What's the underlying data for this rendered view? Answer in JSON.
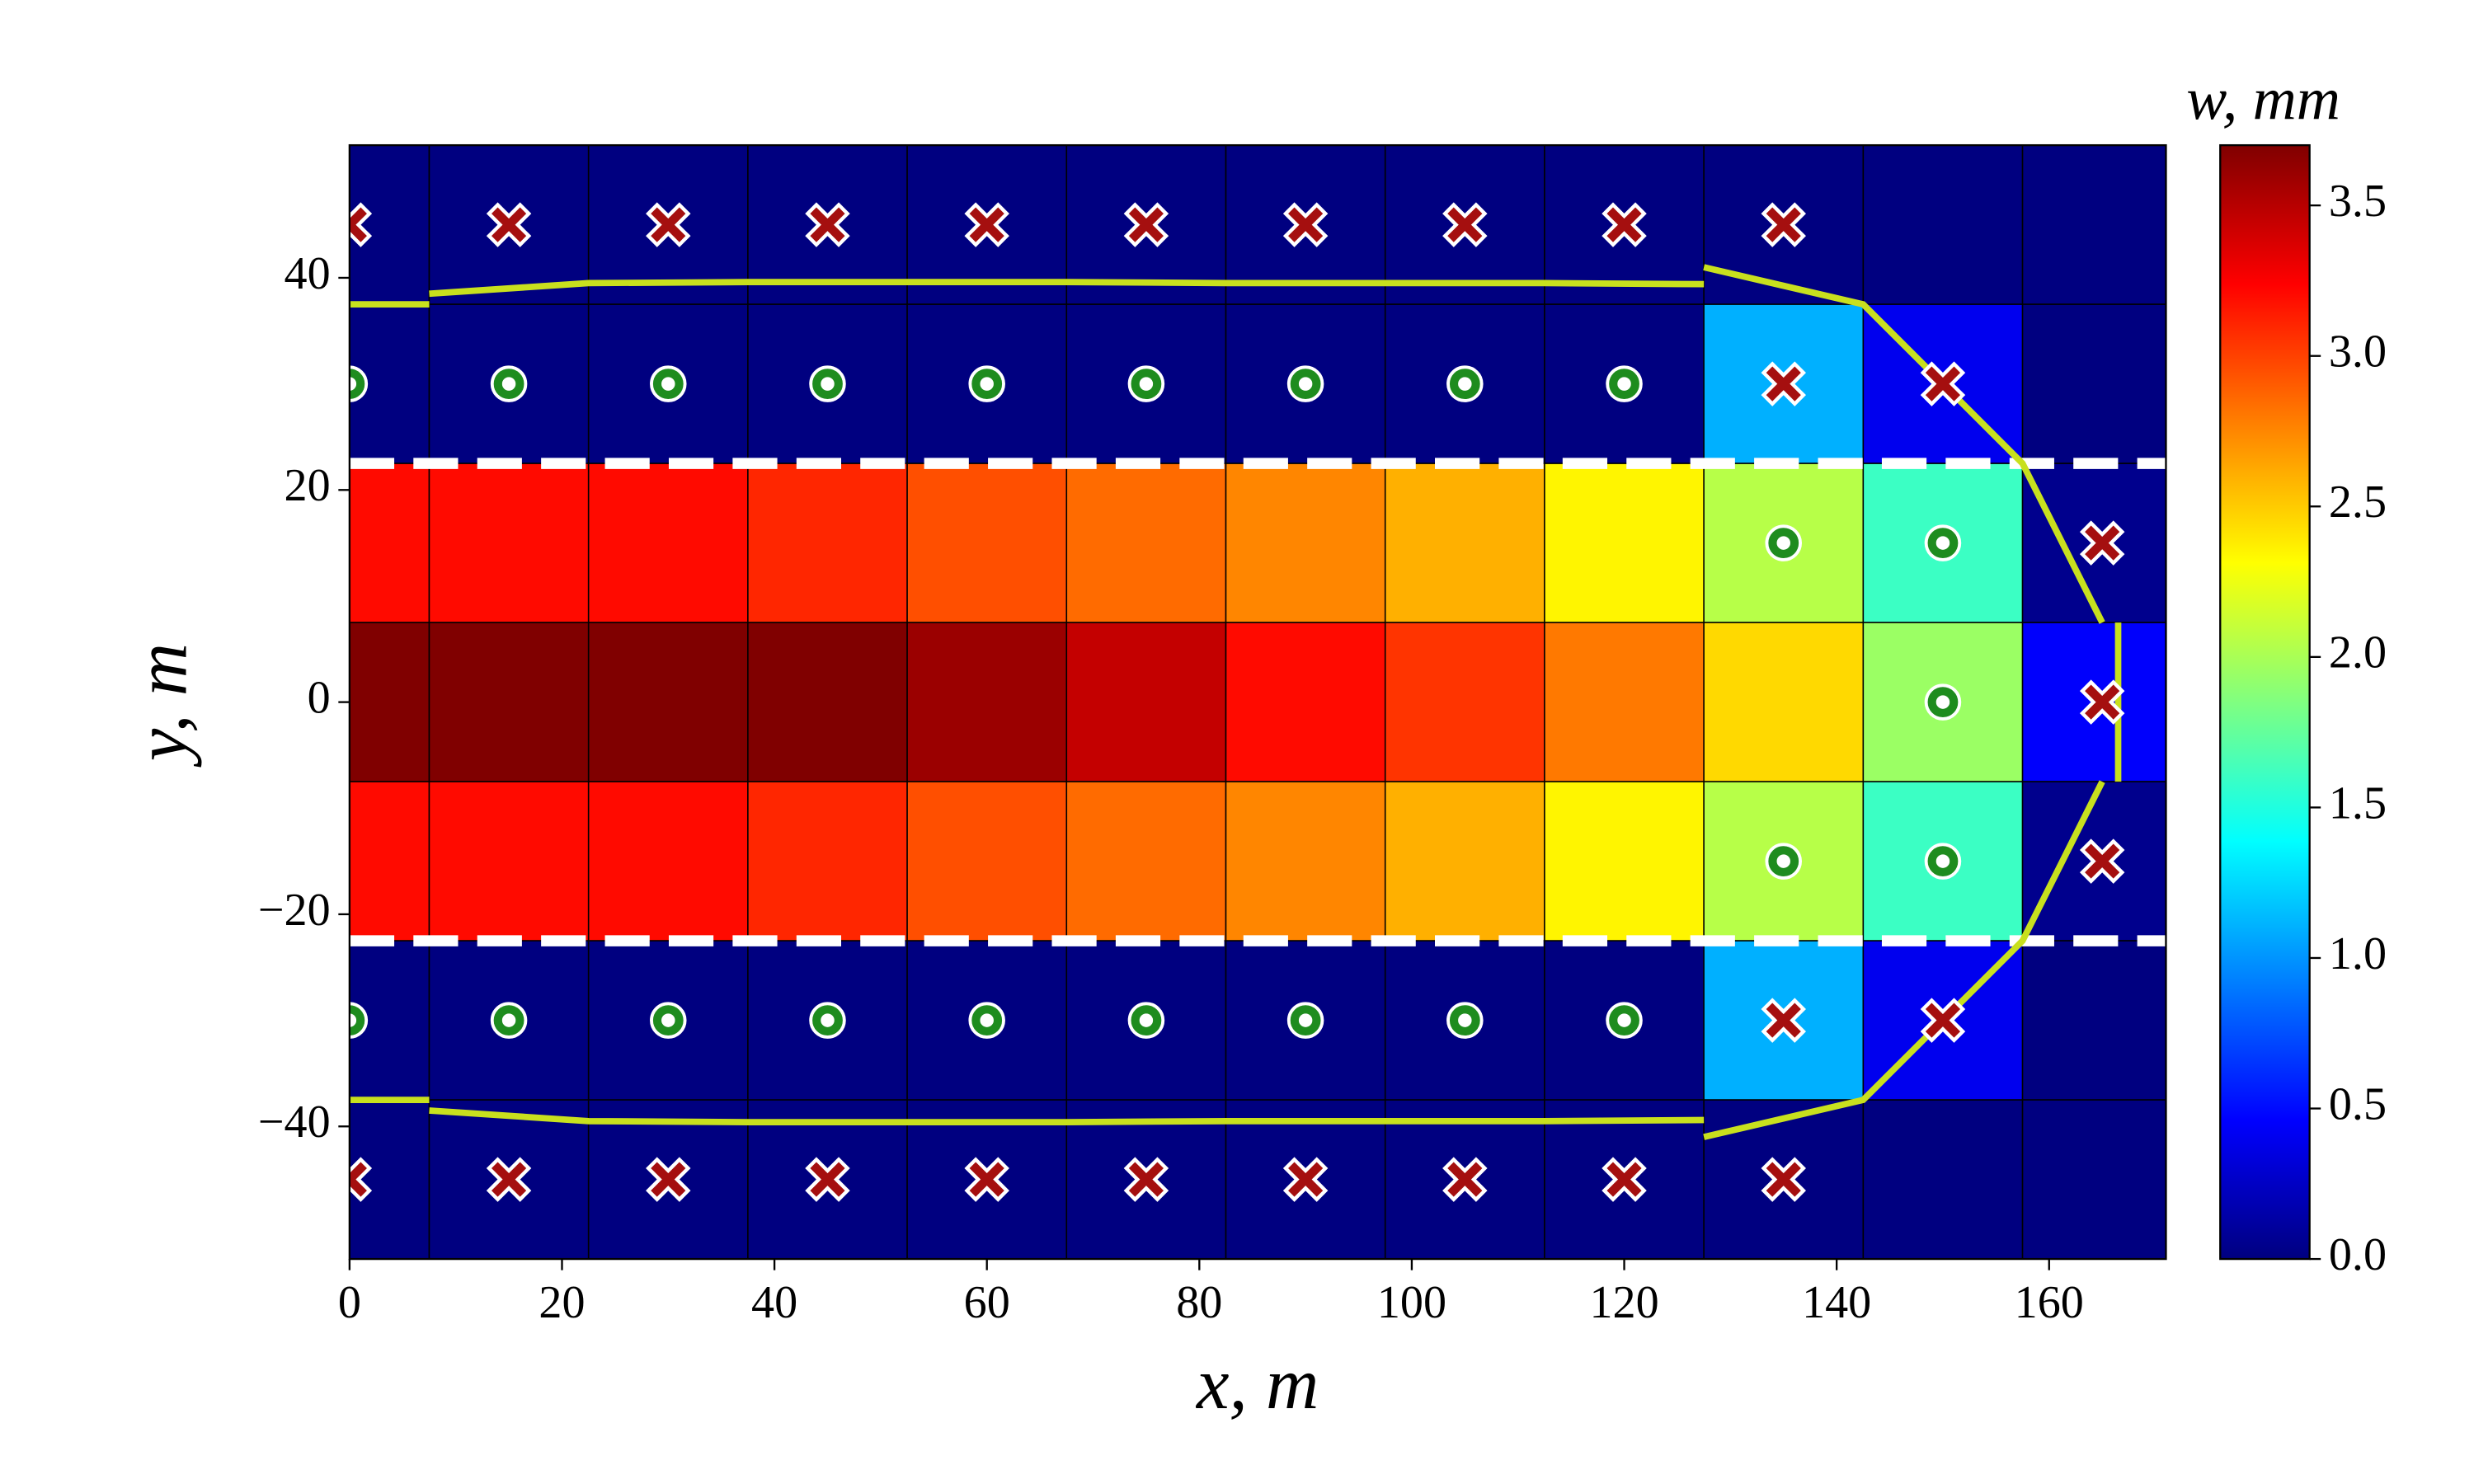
{
  "chart_data": {
    "type": "heatmap",
    "xlabel": "x, m",
    "ylabel": "y, m",
    "colorbar_label": "w, mm",
    "colormap": "jet",
    "x": [
      0,
      15,
      30,
      45,
      60,
      75,
      90,
      105,
      120,
      135,
      150,
      165
    ],
    "y": [
      45,
      30,
      15,
      0,
      -15,
      -30,
      -45
    ],
    "values": [
      [
        0,
        0,
        0,
        0,
        0,
        0,
        0,
        0,
        0,
        0,
        0,
        0
      ],
      [
        0,
        0,
        0,
        0,
        0,
        0,
        0,
        0,
        0,
        1.1,
        0.4,
        0
      ],
      [
        3.2,
        3.2,
        3.2,
        3.1,
        2.95,
        2.85,
        2.75,
        2.6,
        2.35,
        2.05,
        1.6,
        0.05
      ],
      [
        3.7,
        3.7,
        3.7,
        3.7,
        3.6,
        3.45,
        3.2,
        3.05,
        2.8,
        2.45,
        1.95,
        0.45
      ],
      [
        3.2,
        3.2,
        3.2,
        3.1,
        2.95,
        2.85,
        2.75,
        2.6,
        2.35,
        2.05,
        1.6,
        0.05
      ],
      [
        0,
        0,
        0,
        0,
        0,
        0,
        0,
        0,
        0,
        1.1,
        0.4,
        0
      ],
      [
        0,
        0,
        0,
        0,
        0,
        0,
        0,
        0,
        0,
        0,
        0,
        0
      ]
    ],
    "clim": [
      0,
      3.7
    ],
    "cbar_ticks": [
      {
        "value": 0,
        "label": "0.0"
      },
      {
        "value": 0.5,
        "label": "0.5"
      },
      {
        "value": 1,
        "label": "1.0"
      },
      {
        "value": 1.5,
        "label": "1.5"
      },
      {
        "value": 2,
        "label": "2.0"
      },
      {
        "value": 2.5,
        "label": "2.5"
      },
      {
        "value": 3,
        "label": "3.0"
      },
      {
        "value": 3.5,
        "label": "3.5"
      }
    ],
    "xlim": [
      0,
      171
    ],
    "ylim": [
      -52.5,
      52.5
    ],
    "xticks": [
      0,
      20,
      40,
      60,
      80,
      100,
      120,
      140,
      160
    ],
    "yticks": [
      {
        "value": -40,
        "label": "−40"
      },
      {
        "value": -20,
        "label": "−20"
      },
      0,
      20,
      40
    ],
    "hlines": {
      "values": [
        22.5,
        -22.5
      ],
      "color": "#ffffff"
    },
    "cross_markers": {
      "color": "#a50f0f",
      "x": [
        0,
        15,
        30,
        45,
        60,
        75,
        90,
        105,
        120,
        135,
        135,
        150,
        165,
        165,
        165,
        135,
        150,
        0,
        15,
        30,
        45,
        60,
        75,
        90,
        105,
        120,
        135
      ],
      "y": [
        45,
        45,
        45,
        45,
        45,
        45,
        45,
        45,
        45,
        45,
        30,
        30,
        15,
        0,
        -15,
        -30,
        -30,
        -45,
        -45,
        -45,
        -45,
        -45,
        -45,
        -45,
        -45,
        -45,
        -45
      ]
    },
    "circle_markers": {
      "color": "#1e8c1e",
      "x": [
        0,
        15,
        30,
        45,
        60,
        75,
        90,
        105,
        120,
        135,
        150,
        150,
        135,
        150,
        0,
        15,
        30,
        45,
        60,
        75,
        90,
        105,
        120
      ],
      "y": [
        30,
        30,
        30,
        30,
        30,
        30,
        30,
        30,
        30,
        15,
        15,
        0,
        -15,
        -15,
        -30,
        -30,
        -30,
        -30,
        -30,
        -30,
        -30,
        -30,
        -30
      ]
    },
    "outline": {
      "color": "#c8e01e",
      "x": [
        0,
        7.5,
        null,
        7.5,
        22.5,
        37.5,
        52.5,
        67.5,
        82.5,
        97.5,
        112.5,
        127.5,
        null,
        127.5,
        142.5,
        157.5,
        165,
        null,
        166.5,
        166.5,
        null,
        165,
        157.5,
        142.5,
        127.5,
        null,
        127.5,
        112.5,
        97.5,
        82.5,
        67.5,
        52.5,
        37.5,
        22.5,
        7.5,
        null,
        7.5,
        0
      ],
      "y": [
        37.5,
        37.5,
        null,
        38.5,
        39.5,
        39.6,
        39.6,
        39.6,
        39.5,
        39.5,
        39.5,
        39.4,
        null,
        41,
        37.5,
        22.5,
        7.5,
        null,
        7.5,
        -7.5,
        null,
        -7.5,
        -22.5,
        -37.5,
        -41,
        null,
        -39.4,
        -39.5,
        -39.5,
        -39.5,
        -39.6,
        -39.6,
        -39.6,
        -39.5,
        -38.5,
        null,
        -37.5,
        -37.5
      ]
    }
  }
}
